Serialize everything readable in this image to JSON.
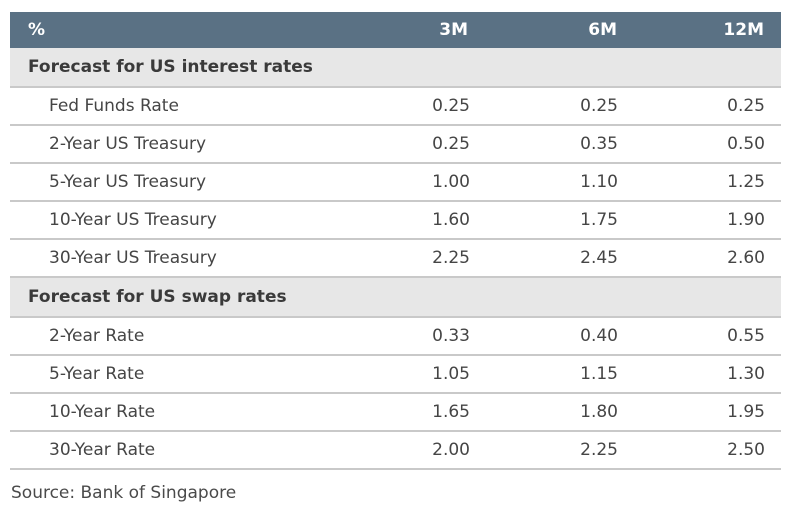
{
  "table": {
    "header": {
      "label": "%",
      "columns": [
        "3M",
        "6M",
        "12M"
      ]
    },
    "sections": [
      {
        "title": "Forecast for US interest rates",
        "rows": [
          {
            "label": "Fed Funds Rate",
            "values": [
              "0.25",
              "0.25",
              "0.25"
            ]
          },
          {
            "label": "2-Year US Treasury",
            "values": [
              "0.25",
              "0.35",
              "0.50"
            ]
          },
          {
            "label": "5-Year US Treasury",
            "values": [
              "1.00",
              "1.10",
              "1.25"
            ]
          },
          {
            "label": "10-Year US Treasury",
            "values": [
              "1.60",
              "1.75",
              "1.90"
            ]
          },
          {
            "label": "30-Year US Treasury",
            "values": [
              "2.25",
              "2.45",
              "2.60"
            ]
          }
        ]
      },
      {
        "title": "Forecast for US swap rates",
        "rows": [
          {
            "label": "2-Year Rate",
            "values": [
              "0.33",
              "0.40",
              "0.55"
            ]
          },
          {
            "label": "5-Year Rate",
            "values": [
              "1.05",
              "1.15",
              "1.30"
            ]
          },
          {
            "label": "10-Year Rate",
            "values": [
              "1.65",
              "1.80",
              "1.95"
            ]
          },
          {
            "label": "30-Year Rate",
            "values": [
              "2.00",
              "2.25",
              "2.50"
            ]
          }
        ]
      }
    ]
  },
  "source": "Source: Bank of Singapore",
  "colors": {
    "header_bg": "#5a7184",
    "section_bg": "#e7e7e7",
    "divider": "#c9c9c9"
  }
}
